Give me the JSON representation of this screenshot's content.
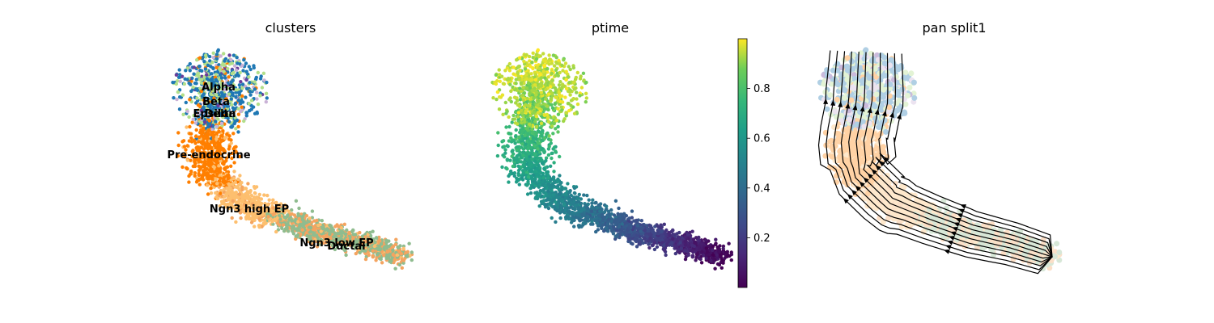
{
  "chart_data": [
    {
      "type": "scatter",
      "title": "clusters",
      "xlabel": "",
      "ylabel": "",
      "grid": false,
      "legend": "on data",
      "axes_visible": false,
      "categories": [
        {
          "name": "Ductal",
          "color": "#8fbc8f"
        },
        {
          "name": "Ngn3 low EP",
          "color": "#f4a460"
        },
        {
          "name": "Ngn3 high EP",
          "color": "#fdbf6f"
        },
        {
          "name": "Pre-endocrine",
          "color": "#ff7f00"
        },
        {
          "name": "Alpha",
          "color": "#1f78b4"
        },
        {
          "name": "Beta",
          "color": "#b2df8a"
        },
        {
          "name": "Delta",
          "color": "#6a3d9a"
        },
        {
          "name": "Epsilon",
          "color": "#cab2d6"
        }
      ]
    },
    {
      "type": "scatter",
      "title": "ptime",
      "xlabel": "",
      "ylabel": "",
      "grid": false,
      "axes_visible": false,
      "colorbar": {
        "colormap": "viridis",
        "range": [
          0.0,
          1.0
        ],
        "ticks": [
          0.2,
          0.4,
          0.6,
          0.8
        ],
        "tick_labels": [
          "0.2",
          "0.4",
          "0.6",
          "0.8"
        ],
        "position": "right"
      }
    },
    {
      "type": "scatter",
      "title": "pan split1",
      "xlabel": "",
      "ylabel": "",
      "grid": false,
      "axes_visible": false,
      "overlay": "streamlines",
      "stream_color": "#000000"
    }
  ]
}
